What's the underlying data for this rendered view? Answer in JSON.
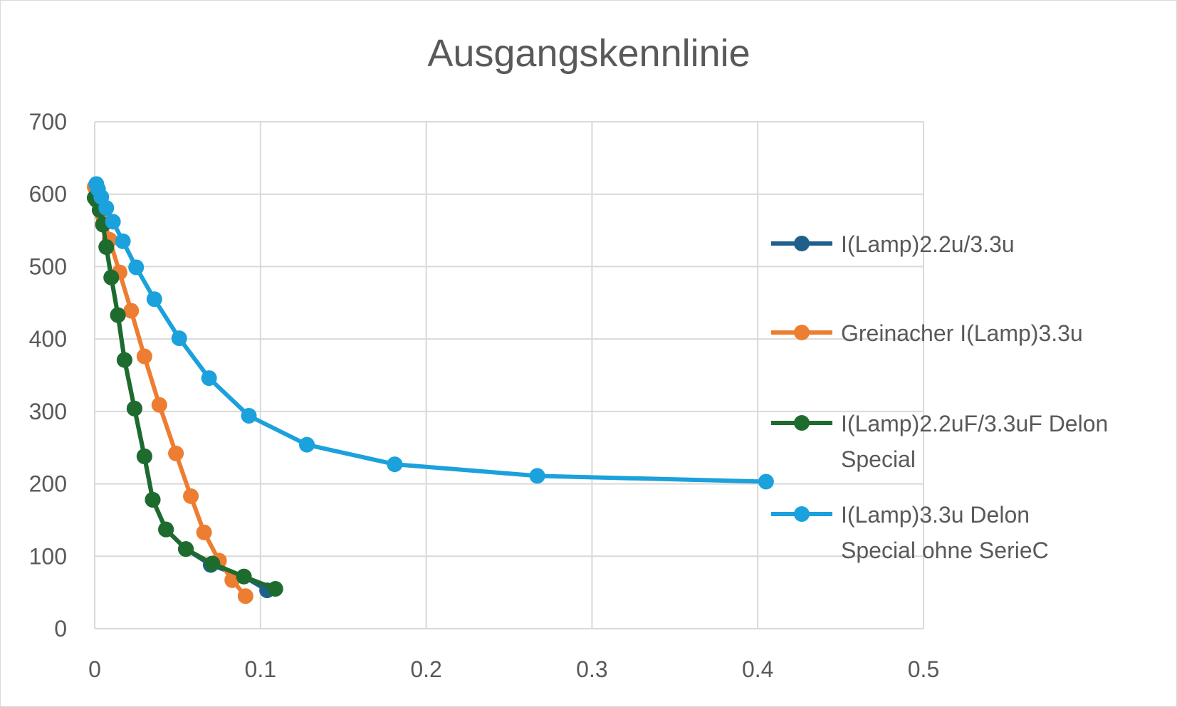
{
  "chart_data": {
    "type": "scatter",
    "title": "Ausgangskennlinie",
    "xlabel": "",
    "ylabel": "",
    "xlim": [
      0,
      0.5
    ],
    "ylim": [
      0,
      700
    ],
    "x_ticks": [
      "0",
      "0.1",
      "0.2",
      "0.3",
      "0.4",
      "0.5"
    ],
    "y_ticks": [
      "0",
      "100",
      "200",
      "300",
      "400",
      "500",
      "600",
      "700"
    ],
    "grid": true,
    "legend_position": "right",
    "series": [
      {
        "name": "I(Lamp)2.2u/3.3u",
        "color": "#1f5f8b",
        "x": [
          0.0,
          0.001,
          0.003,
          0.005,
          0.007,
          0.01,
          0.014,
          0.018,
          0.024,
          0.03,
          0.035,
          0.043,
          0.055,
          0.07,
          0.09,
          0.104
        ],
        "y": [
          595,
          592,
          578,
          558,
          527,
          485,
          433,
          371,
          304,
          238,
          178,
          137,
          110,
          88,
          72,
          53
        ]
      },
      {
        "name": "Greinacher I(Lamp)3.3u",
        "color": "#ed7d31",
        "x": [
          0.0,
          0.002,
          0.005,
          0.009,
          0.015,
          0.022,
          0.03,
          0.039,
          0.049,
          0.058,
          0.066,
          0.075,
          0.083,
          0.091
        ],
        "y": [
          610,
          590,
          570,
          537,
          492,
          439,
          376,
          309,
          242,
          183,
          133,
          94,
          67,
          45
        ]
      },
      {
        "name": "I(Lamp)2.2uF/3.3uF Delon Special",
        "color": "#1e6b2e",
        "x": [
          0.0,
          0.001,
          0.003,
          0.005,
          0.007,
          0.01,
          0.014,
          0.018,
          0.024,
          0.03,
          0.035,
          0.043,
          0.055,
          0.071,
          0.09,
          0.109
        ],
        "y": [
          595,
          592,
          578,
          558,
          527,
          485,
          433,
          371,
          304,
          238,
          178,
          137,
          110,
          90,
          72,
          55
        ]
      },
      {
        "name": "I(Lamp)3.3u Delon Special ohne SerieC",
        "color": "#1ba1dc",
        "x": [
          0.001,
          0.002,
          0.004,
          0.007,
          0.011,
          0.017,
          0.025,
          0.036,
          0.051,
          0.069,
          0.093,
          0.128,
          0.181,
          0.267,
          0.405
        ],
        "y": [
          614,
          607,
          596,
          581,
          562,
          535,
          499,
          455,
          401,
          346,
          294,
          254,
          227,
          211,
          203
        ]
      }
    ]
  }
}
